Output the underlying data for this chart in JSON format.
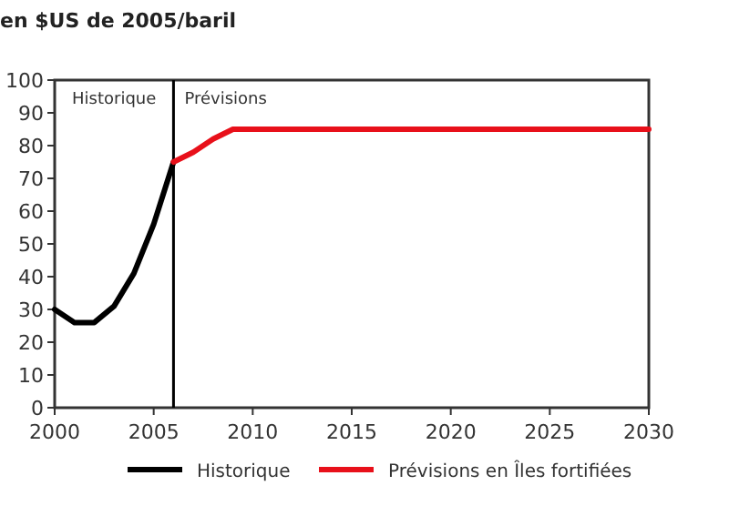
{
  "chart_data": {
    "type": "line",
    "ylabel": "en $US de 2005/baril",
    "x": [
      2000,
      2001,
      2002,
      2003,
      2004,
      2005,
      2006
    ],
    "series": [
      {
        "name": "Historique",
        "color": "#000000",
        "values": [
          30,
          26,
          26,
          31,
          41,
          56,
          75
        ]
      },
      {
        "name": "Prévisions en Îles fortifiées",
        "color": "#e8101a",
        "x": [
          2006,
          2007,
          2008,
          2009,
          2030
        ],
        "values": [
          75,
          78,
          82,
          85,
          85
        ]
      }
    ],
    "xlim": [
      2000,
      2030
    ],
    "xticks": [
      2000,
      2005,
      2010,
      2015,
      2020,
      2025,
      2030
    ],
    "ylim": [
      0,
      100
    ],
    "yticks": [
      0,
      10,
      20,
      30,
      40,
      50,
      60,
      70,
      80,
      90,
      100
    ],
    "ref_lines": [
      {
        "axis": "x",
        "value": 2006,
        "color": "#000000"
      }
    ],
    "annotations": [
      "Historique",
      "Prévisions"
    ],
    "grid": false,
    "legend": "bottom",
    "marker": "none",
    "line_style": "solid"
  }
}
